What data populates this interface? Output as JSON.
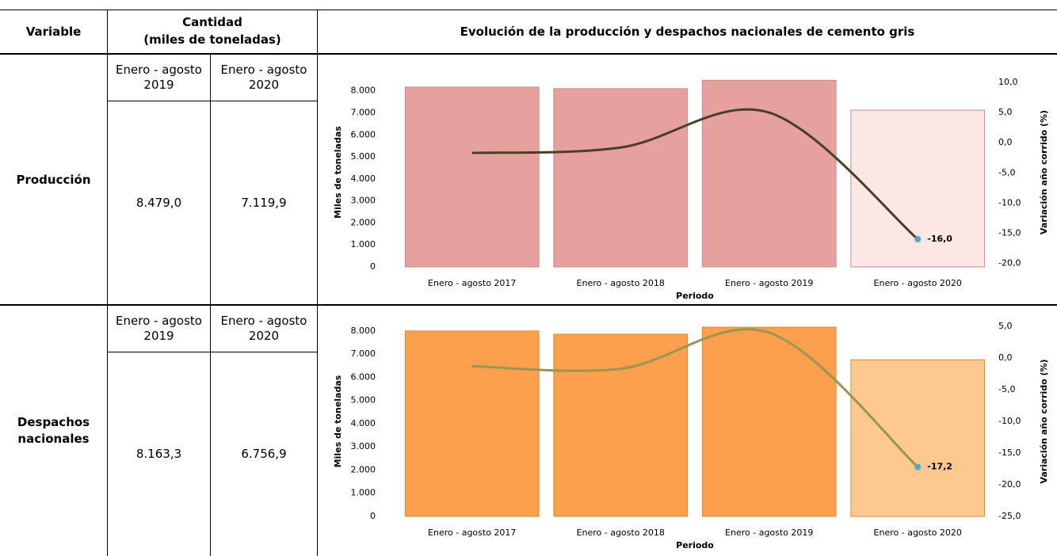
{
  "table": {
    "header": [
      "Variable",
      "Cantidad",
      "(miles de toneladas)",
      "Evolución de la producción y despachos nacionales de cemento gris"
    ],
    "rows": [
      {
        "variable": "Producción",
        "periods": [
          "Enero - agosto 2019",
          "Enero - agosto 2020"
        ],
        "values": [
          "8.479,0",
          "7.119,9"
        ]
      },
      {
        "variable": "Despachos nacionales",
        "periods": [
          "Enero - agosto 2019",
          "Enero - agosto 2020"
        ],
        "values": [
          "8.163,3",
          "6.756,9"
        ]
      }
    ]
  },
  "chart_data": [
    {
      "type": "bar",
      "categories": [
        "Enero - agosto 2017",
        "Enero - agosto 2018",
        "Enero - agosto 2019",
        "Enero - agosto 2020"
      ],
      "series": [
        {
          "type": "bar",
          "values": [
            8170,
            8100,
            8479,
            7119.9
          ],
          "colors": [
            "#e6a09e",
            "#e6a09e",
            "#e6a09e",
            "#fde7e4"
          ],
          "stroke": "#c48c8a"
        },
        {
          "type": "line",
          "axis": "y2",
          "color": "#4a3f22",
          "values": [
            -1.7,
            -0.8,
            5.0,
            -16.0
          ],
          "value_labels": [
            null,
            null,
            null,
            "-16,0"
          ],
          "marker_color": "#4bacc6"
        }
      ],
      "xlabel": "Periodo",
      "ylabel": "Miles de toneladas",
      "y2label": "Variación año corrido (%)",
      "ylim": [
        0,
        8600
      ],
      "yticks": [
        0,
        {
          "value": 1000,
          "label": "1.000"
        },
        {
          "value": 2000,
          "label": "2.000"
        },
        {
          "value": 3000,
          "label": "3.000"
        },
        {
          "value": 4000,
          "label": "4.000"
        },
        {
          "value": 5000,
          "label": "5.000"
        },
        {
          "value": 6000,
          "label": "6.000"
        },
        {
          "value": 7000,
          "label": "7.000"
        },
        {
          "value": 8000,
          "label": "8.000"
        }
      ],
      "y2lim": [
        -20.6,
        10.8
      ],
      "y2ticks": [
        {
          "value": 10,
          "label": "10,0"
        },
        {
          "value": 5,
          "label": "5,0"
        },
        {
          "value": 0,
          "label": "0,0"
        },
        {
          "value": -5,
          "label": "-5,0"
        },
        {
          "value": -10,
          "label": "-10,0"
        },
        {
          "value": -15,
          "label": "-15,0"
        },
        {
          "value": -20,
          "label": "-20,0"
        }
      ]
    },
    {
      "type": "bar",
      "categories": [
        "Enero - agosto 2017",
        "Enero - agosto 2018",
        "Enero - agosto 2019",
        "Enero - agosto 2020"
      ],
      "series": [
        {
          "type": "bar",
          "values": [
            8000,
            7860,
            8163.3,
            6756.9
          ],
          "colors": [
            "#fca04d",
            "#fca04d",
            "#fca04d",
            "#fdc98f"
          ],
          "stroke": "#d88a40"
        },
        {
          "type": "line",
          "axis": "y2",
          "color": "#9a9552",
          "values": [
            -1.3,
            -1.7,
            4.0,
            -17.2
          ],
          "value_labels": [
            null,
            null,
            null,
            "-17,2"
          ],
          "marker_color": "#4bacc6"
        }
      ],
      "xlabel": "Periodo",
      "ylabel": "Miles de toneladas",
      "y2label": "Variación año corrido (%)",
      "ylim": [
        0,
        8200
      ],
      "yticks": [
        0,
        {
          "value": 1000,
          "label": "1.000"
        },
        {
          "value": 2000,
          "label": "2.000"
        },
        {
          "value": 3000,
          "label": "3.000"
        },
        {
          "value": 4000,
          "label": "4.000"
        },
        {
          "value": 5000,
          "label": "5.000"
        },
        {
          "value": 6000,
          "label": "6.000"
        },
        {
          "value": 7000,
          "label": "7.000"
        },
        {
          "value": 8000,
          "label": "8.000"
        }
      ],
      "y2lim": [
        -25,
        5
      ],
      "y2ticks": [
        {
          "value": 5,
          "label": "5,0"
        },
        {
          "value": 0,
          "label": "0,0"
        },
        {
          "value": -5,
          "label": "-5,0"
        },
        {
          "value": -10,
          "label": "-10,0"
        },
        {
          "value": -15,
          "label": "-15,0"
        },
        {
          "value": -20,
          "label": "-20,0"
        },
        {
          "value": -25,
          "label": "-25,0"
        }
      ]
    }
  ]
}
